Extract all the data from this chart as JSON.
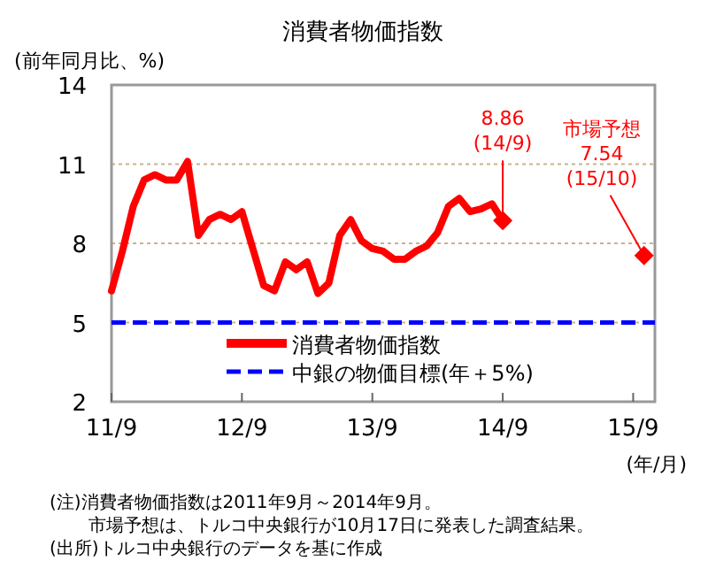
{
  "chart_data": {
    "type": "line",
    "title": "消費者物価指数",
    "ylabel": "(前年同月比、%)",
    "xlabel": "(年/月)",
    "x": [
      "2011-09",
      "2011-10",
      "2011-11",
      "2011-12",
      "2012-01",
      "2012-02",
      "2012-03",
      "2012-04",
      "2012-05",
      "2012-06",
      "2012-07",
      "2012-08",
      "2012-09",
      "2012-10",
      "2012-11",
      "2012-12",
      "2013-01",
      "2013-02",
      "2013-03",
      "2013-04",
      "2013-05",
      "2013-06",
      "2013-07",
      "2013-08",
      "2013-09",
      "2013-10",
      "2013-11",
      "2013-12",
      "2014-01",
      "2014-02",
      "2014-03",
      "2014-04",
      "2014-05",
      "2014-06",
      "2014-07",
      "2014-08",
      "2014-09"
    ],
    "series": [
      {
        "name": "消費者物価指数",
        "color": "#ff0000",
        "values": [
          6.2,
          7.7,
          9.4,
          10.4,
          10.6,
          10.4,
          10.4,
          11.1,
          8.3,
          8.9,
          9.1,
          8.9,
          9.2,
          7.8,
          6.4,
          6.2,
          7.3,
          7.0,
          7.3,
          6.1,
          6.5,
          8.3,
          8.9,
          8.1,
          7.8,
          7.7,
          7.4,
          7.4,
          7.7,
          7.9,
          8.4,
          9.4,
          9.7,
          9.2,
          9.3,
          9.5,
          8.86
        ]
      },
      {
        "type": "scatter",
        "color": "#ff0000",
        "marker": "diamond",
        "x": [
          "2014-09",
          "2015-10"
        ],
        "values": [
          8.86,
          7.54
        ]
      }
    ],
    "ref_lines": [
      {
        "axis": "y",
        "value": 5,
        "label": "中銀の物価目標(年＋5%)",
        "color": "#0000ff",
        "line_style": "dashed"
      }
    ],
    "xlim": [
      "2011-09",
      "2015-11"
    ],
    "xticks": [
      {
        "value": "2011-09",
        "label": "11/9"
      },
      {
        "value": "2012-09",
        "label": "12/9"
      },
      {
        "value": "2013-09",
        "label": "13/9"
      },
      {
        "value": "2014-09",
        "label": "14/9"
      },
      {
        "value": "2015-09",
        "label": "15/9"
      }
    ],
    "ylim": [
      2,
      14
    ],
    "yticks": [
      2,
      5,
      8,
      11,
      14
    ],
    "grid": "y",
    "legend": "bottom right",
    "annotations": [
      {
        "text": "8.86\n(14/9)",
        "x": "2014-09",
        "y": 8.86
      },
      {
        "text": "市場予想\n7.54\n(15/10)",
        "x": "2015-10",
        "y": 7.54
      },
      "(注)消費者物価指数は2011年9月～2014年9月。",
      "市場予想は、トルコ中央銀行が10月17日に発表した調査結果。",
      "(出所)トルコ中央銀行のデータを基に作成"
    ]
  }
}
